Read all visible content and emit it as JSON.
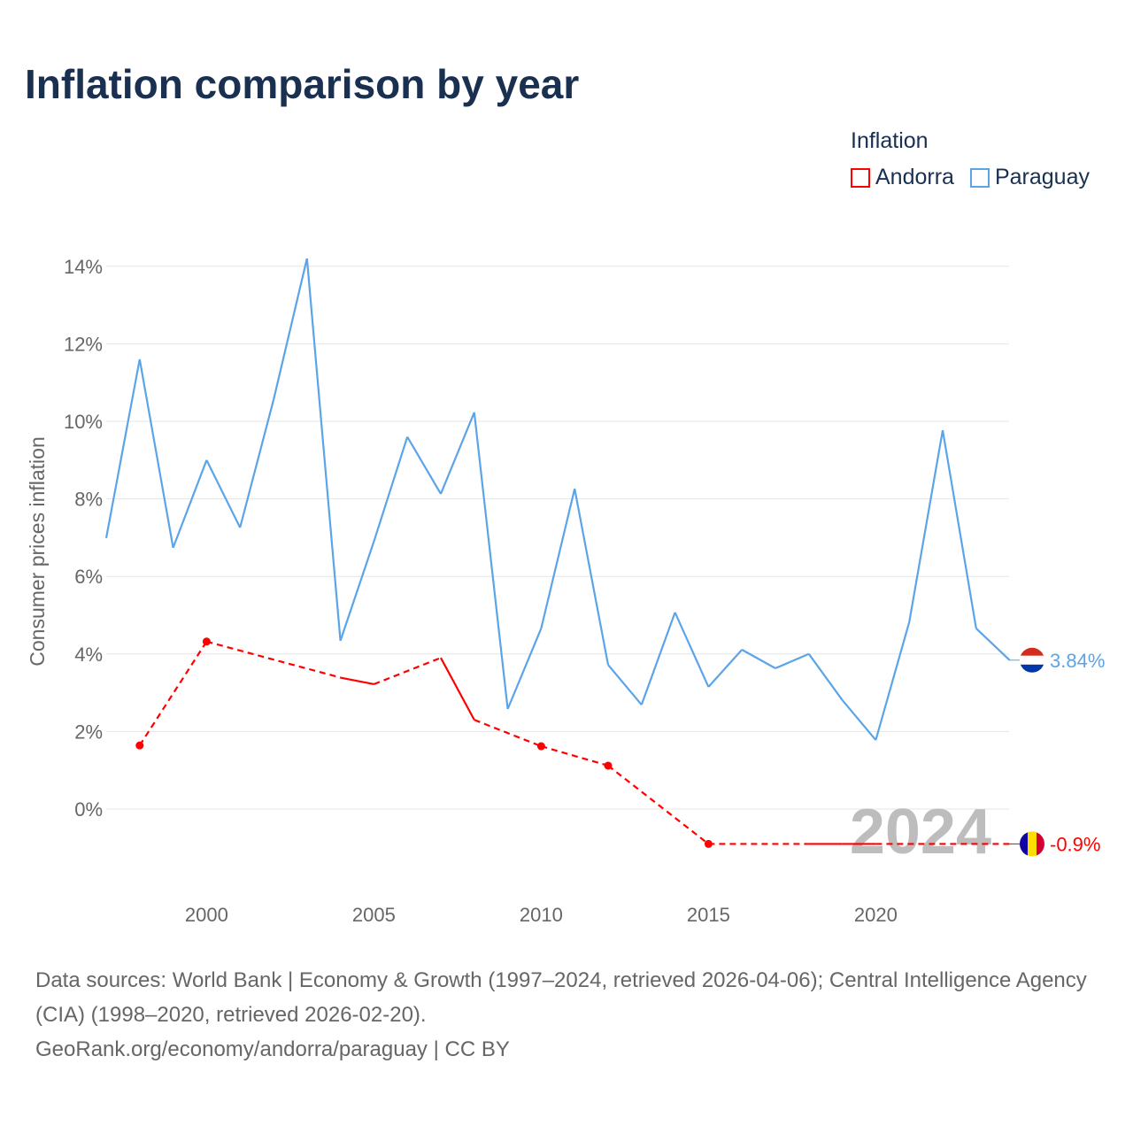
{
  "title": "Inflation comparison by year",
  "legend": {
    "title": "Inflation",
    "items": [
      {
        "name": "Andorra",
        "color": "#ff0000"
      },
      {
        "name": "Paraguay",
        "color": "#5ba4e8"
      }
    ]
  },
  "year_watermark": "2024",
  "footer": {
    "line1": "Data sources: World Bank | Economy & Growth (1997–2024, retrieved 2026-04-06); Central Intelligence Agency (CIA) (1998–2020, retrieved 2026-02-20).",
    "line2": "GeoRank.org/economy/andorra/paraguay | CC BY"
  },
  "chart_data": {
    "type": "line",
    "title": "Inflation comparison by year",
    "ylabel": "Consumer prices inflation",
    "xlabel": "",
    "xlim": [
      1997,
      2024
    ],
    "ylim": [
      -2.2,
      14.5
    ],
    "x_ticks": [
      2000,
      2005,
      2010,
      2015,
      2020
    ],
    "x_tick_labels": [
      "2000",
      "2005",
      "2010",
      "2015",
      "2020"
    ],
    "y_ticks": [
      0,
      2,
      4,
      6,
      8,
      10,
      12,
      14
    ],
    "y_tick_labels": [
      "0%",
      "2%",
      "4%",
      "6%",
      "8%",
      "10%",
      "12%",
      "14%"
    ],
    "grid": true,
    "legend_position": "top-right",
    "series": [
      {
        "name": "Paraguay",
        "color": "#5ba4e8",
        "end_label": "3.84%",
        "x": [
          1997,
          1998,
          1999,
          2000,
          2001,
          2002,
          2003,
          2004,
          2005,
          2006,
          2007,
          2008,
          2009,
          2010,
          2011,
          2012,
          2013,
          2014,
          2015,
          2016,
          2017,
          2018,
          2019,
          2020,
          2021,
          2022,
          2023,
          2024
        ],
        "values": [
          6.99,
          11.6,
          6.74,
          9.0,
          7.26,
          10.55,
          14.2,
          4.34,
          6.9,
          9.6,
          8.13,
          10.23,
          2.58,
          4.66,
          8.26,
          3.72,
          2.69,
          5.07,
          3.15,
          4.11,
          3.63,
          4.0,
          2.81,
          1.78,
          4.82,
          9.77,
          4.66,
          3.84
        ]
      },
      {
        "name": "Andorra",
        "color": "#ff0000",
        "end_label": "-0.9%",
        "x": [
          1998,
          2000,
          2004,
          2005,
          2007,
          2008,
          2010,
          2012,
          2015,
          2018,
          2019,
          2020,
          2024
        ],
        "values": [
          1.64,
          4.32,
          3.39,
          3.22,
          3.9,
          2.3,
          1.62,
          1.12,
          -0.9,
          -0.9,
          -0.9,
          -0.9,
          -0.9
        ]
      }
    ]
  }
}
